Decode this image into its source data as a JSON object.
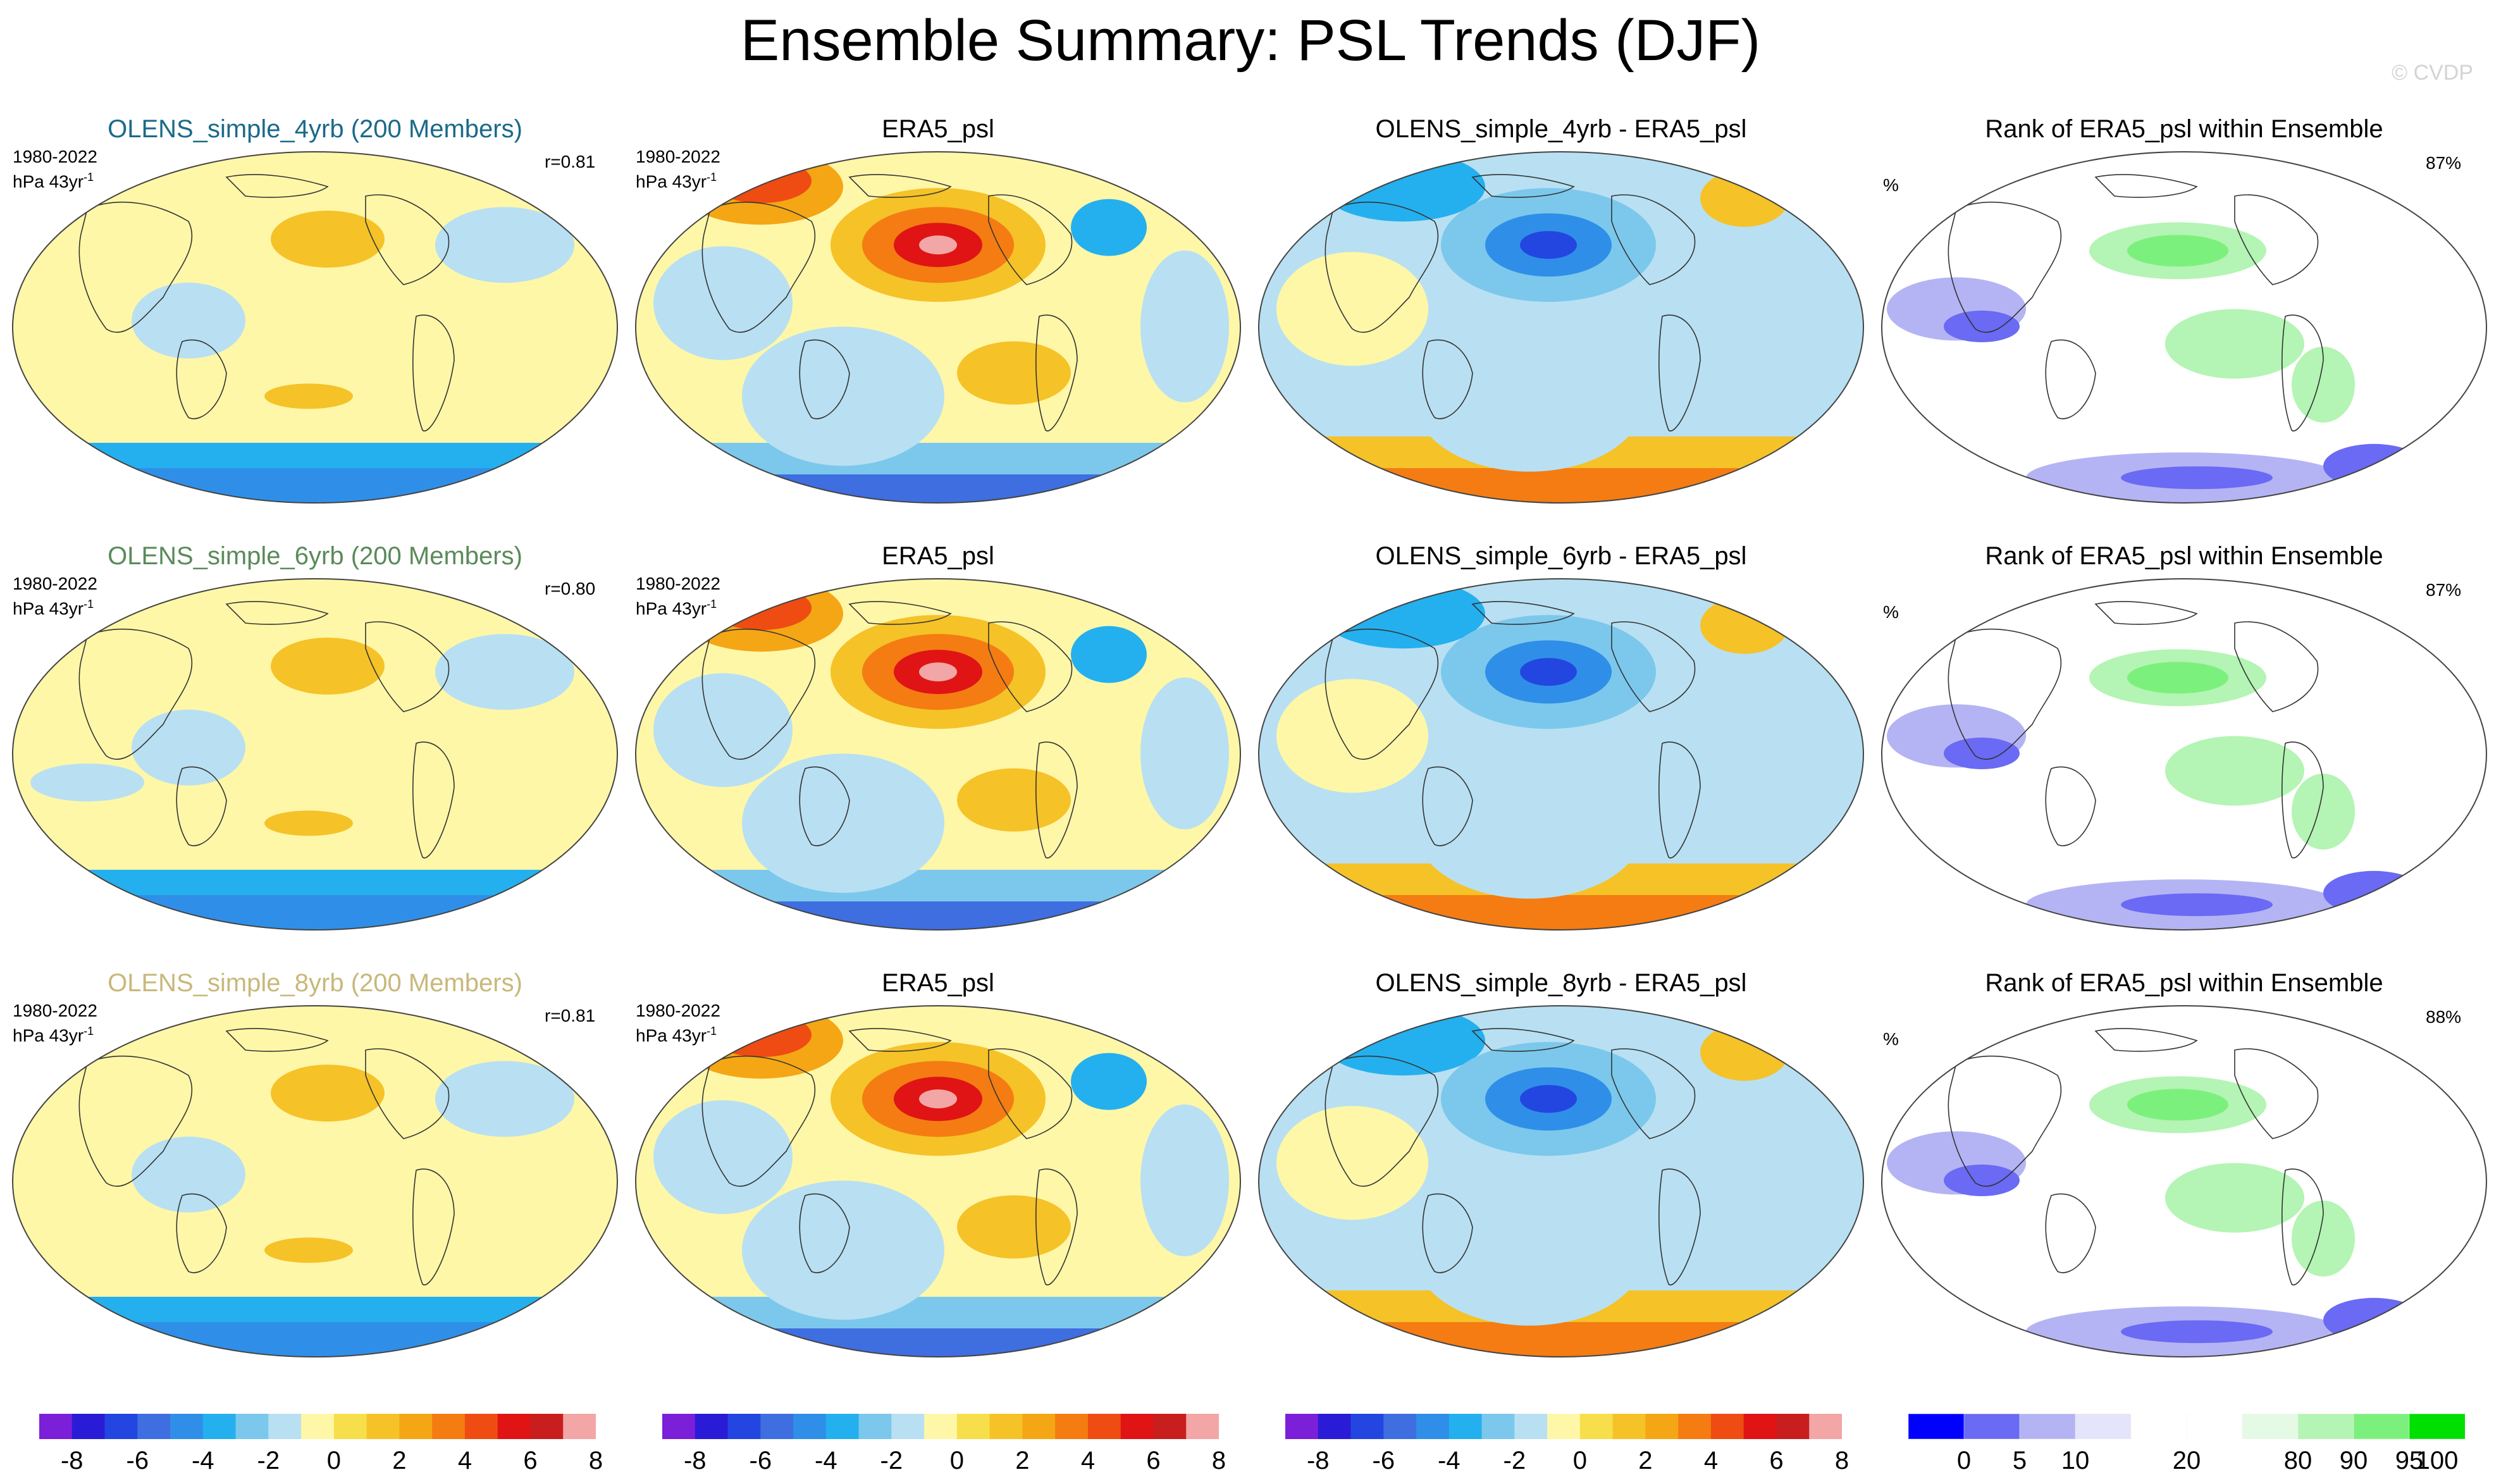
{
  "title": "Ensemble Summary: PSL Trends (DJF)",
  "credit": "© CVDP",
  "period": "1980-2022",
  "units_prefix": "hPa 43yr",
  "units_exp": "-1",
  "pct_symbol": "%",
  "colors": {
    "ensemble_title_colors": [
      "#1a6a8a",
      "#5a8a5a",
      "#c8b87a"
    ]
  },
  "rows": [
    {
      "ens_title": "OLENS_simple_4yrb (200 Members)",
      "corr": "r=0.81",
      "obs_title": "ERA5_psl",
      "diff_title": "OLENS_simple_4yrb - ERA5_psl",
      "rank_title": "Rank of ERA5_psl within Ensemble",
      "rank_pct": "87%"
    },
    {
      "ens_title": "OLENS_simple_6yrb (200 Members)",
      "corr": "r=0.80",
      "obs_title": "ERA5_psl",
      "diff_title": "OLENS_simple_6yrb - ERA5_psl",
      "rank_title": "Rank of ERA5_psl within Ensemble",
      "rank_pct": "87%"
    },
    {
      "ens_title": "OLENS_simple_8yrb (200 Members)",
      "corr": "r=0.81",
      "obs_title": "ERA5_psl",
      "diff_title": "OLENS_simple_8yrb - ERA5_psl",
      "rank_title": "Rank of ERA5_psl within Ensemble",
      "rank_pct": "88%"
    }
  ],
  "chart_data": [
    {
      "type": "heatmap",
      "description_of_fields": "PSL trend maps, DJF 1980-2022; values in hPa per 43yr",
      "colorbar": {
        "colors": [
          "#7b1fd8",
          "#2a1cd6",
          "#2346e0",
          "#3e6ee0",
          "#2f8fe8",
          "#24b0ee",
          "#7cc8ec",
          "#b8e0f2",
          "#fff7a8",
          "#f6df4a",
          "#f5c228",
          "#f5a614",
          "#f47c12",
          "#ee4c12",
          "#e01414",
          "#c81e1e",
          "#f2a6a6"
        ],
        "ticks": [
          "-8",
          "-6",
          "-4",
          "-2",
          "0",
          "2",
          "4",
          "6",
          "8"
        ]
      },
      "panels": [
        {
          "name": "ensemble_mean",
          "pattern": "weak positive NH/tropics, negative Southern Ocean band"
        },
        {
          "name": "ERA5_psl",
          "pattern": "strong positive North Pacific center, negative Southern Ocean"
        },
        {
          "name": "difference",
          "pattern": "negative North Pacific center, positive Southern Ocean"
        }
      ]
    },
    {
      "type": "heatmap",
      "description_of_fields": "Rank of ERA5_psl within ensemble (%)",
      "colorbar": {
        "colors": [
          "#0000ff",
          "#6a6af4",
          "#b4b4f4",
          "#e4e4fa",
          "#ffffff",
          "#ffffff",
          "#e4fae4",
          "#b4f4b4",
          "#7cf07c",
          "#00e000"
        ],
        "ticks": [
          "0",
          "5",
          "10",
          "20",
          "80",
          "90",
          "95",
          "100"
        ]
      }
    }
  ]
}
